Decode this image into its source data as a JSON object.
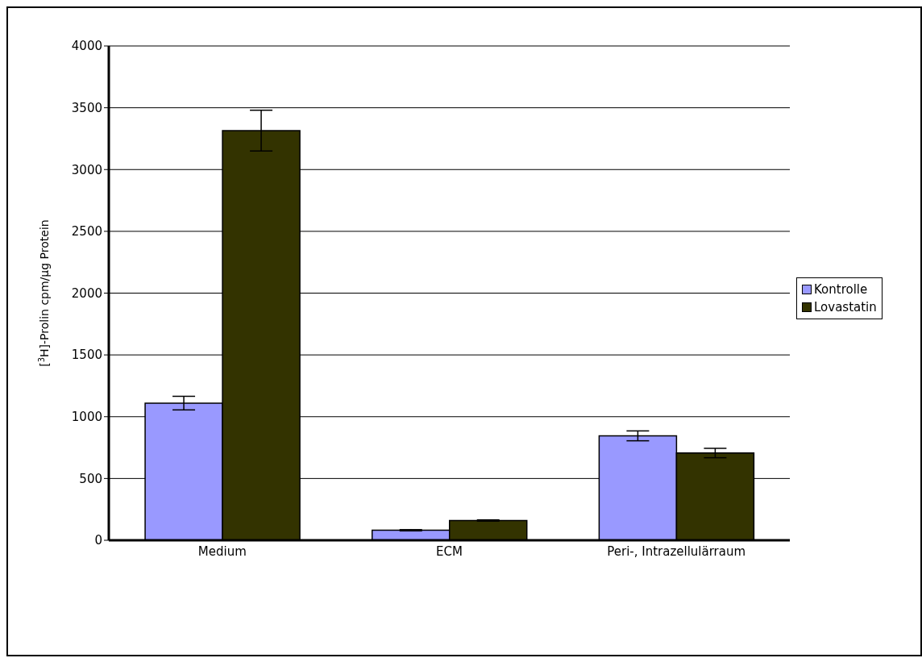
{
  "chart_data": {
    "type": "bar",
    "ylabel": "[$^{3}$H]-Prolin cpm/µg Protein",
    "categories": [
      "Medium",
      "ECM",
      "Peri-, Intrazellulärraum"
    ],
    "series": [
      {
        "name": "Kontrolle",
        "color": "#9999ff",
        "values": [
          1110,
          81,
          845
        ],
        "errors": [
          55,
          5,
          40
        ]
      },
      {
        "name": "Lovastatin",
        "color": "#333300",
        "values": [
          3315,
          160,
          706
        ],
        "errors": [
          165,
          5,
          38
        ]
      }
    ],
    "ylim": [
      0,
      4000
    ],
    "yticks": [
      0,
      500,
      1000,
      1500,
      2000,
      2500,
      3000,
      3500,
      4000
    ],
    "grid": "y",
    "legend": "right"
  }
}
